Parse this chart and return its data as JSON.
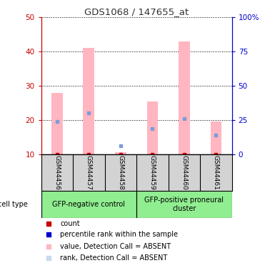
{
  "title": "GDS1068 / 147655_at",
  "samples": [
    "GSM44456",
    "GSM44457",
    "GSM44458",
    "GSM44459",
    "GSM44460",
    "GSM44461"
  ],
  "groups": [
    {
      "label": "GFP-negative control",
      "color": "#90EE90",
      "indices": [
        0,
        1,
        2
      ]
    },
    {
      "label": "GFP-positive proneural\ncluster",
      "color": "#90EE90",
      "indices": [
        3,
        4,
        5
      ]
    }
  ],
  "pink_bar_tops": [
    28,
    41,
    10.5,
    25.5,
    43,
    19.5
  ],
  "pink_bar_bottom": 10,
  "blue_square_values": [
    19.5,
    22,
    12.5,
    17.5,
    20.5,
    15.5
  ],
  "red_square_values": [
    10,
    10,
    10,
    10,
    10,
    10
  ],
  "ylim_left": [
    10,
    50
  ],
  "ylim_right": [
    0,
    100
  ],
  "yticks_left": [
    10,
    20,
    30,
    40,
    50
  ],
  "yticks_right": [
    0,
    25,
    50,
    75,
    100
  ],
  "ytick_labels_right": [
    "0",
    "25",
    "50",
    "75",
    "100%"
  ],
  "pink_color": "#FFB6C1",
  "blue_color": "#7B9CD9",
  "red_color": "#CC0000",
  "left_axis_color": "#CC0000",
  "right_axis_color": "#0000CC",
  "bg_color": "#FFFFFF",
  "grid_color": "#000000",
  "sample_bg": "#D3D3D3",
  "bar_width": 0.35,
  "legend_items": [
    {
      "color": "#CC0000",
      "label": "count"
    },
    {
      "color": "#0000CC",
      "label": "percentile rank within the sample"
    },
    {
      "color": "#FFB6C1",
      "label": "value, Detection Call = ABSENT"
    },
    {
      "color": "#C8D8F0",
      "label": "rank, Detection Call = ABSENT"
    }
  ]
}
